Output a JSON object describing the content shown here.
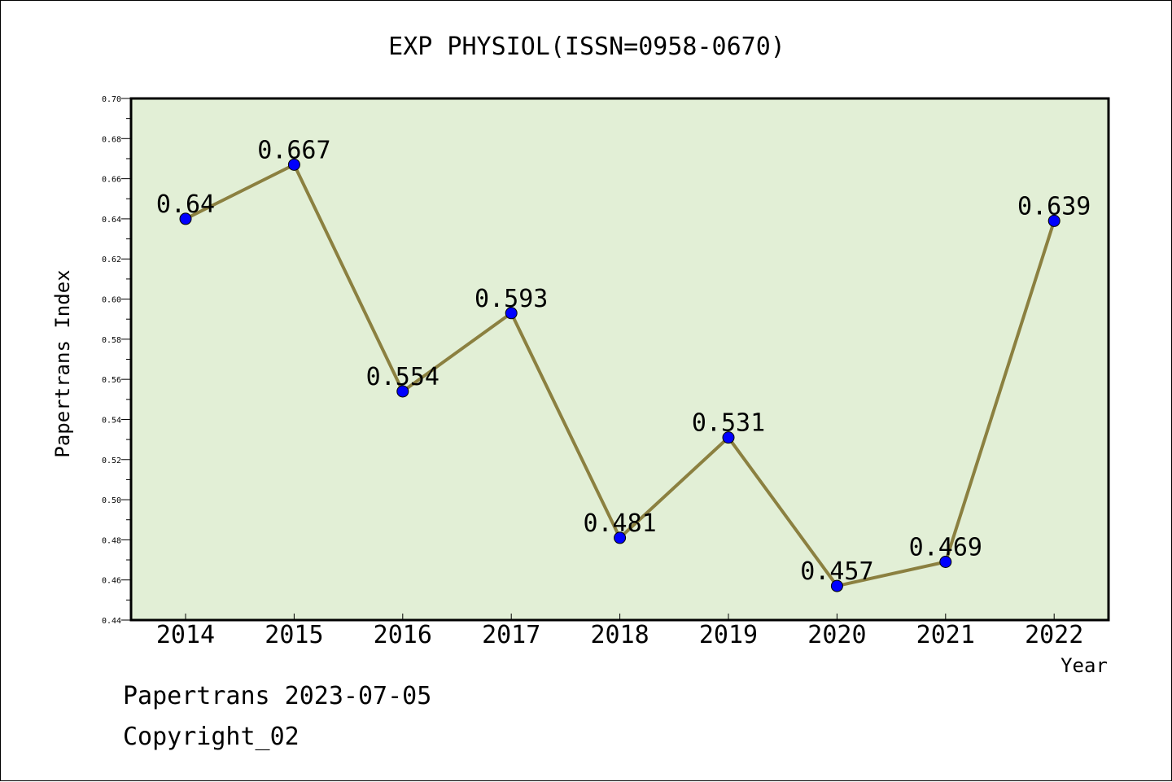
{
  "chart_data": {
    "type": "line",
    "title": "EXP PHYSIOL(ISSN=0958-0670)",
    "xlabel": "Year",
    "ylabel": "Papertrans Index",
    "categories": [
      "2014",
      "2015",
      "2016",
      "2017",
      "2018",
      "2019",
      "2020",
      "2021",
      "2022"
    ],
    "values": [
      0.64,
      0.667,
      0.554,
      0.593,
      0.481,
      0.531,
      0.457,
      0.469,
      0.639
    ],
    "data_labels": [
      "0.64",
      "0.667",
      "0.554",
      "0.593",
      "0.481",
      "0.531",
      "0.457",
      "0.469",
      "0.639"
    ],
    "ylim": [
      0.44,
      0.7
    ],
    "yticks": [
      "0.44",
      "0.46",
      "0.48",
      "0.50",
      "0.52",
      "0.54",
      "0.56",
      "0.58",
      "0.60",
      "0.62",
      "0.64",
      "0.66",
      "0.68",
      "0.70"
    ],
    "grid": false,
    "legend": "none",
    "colors": {
      "line": "#8b8040",
      "marker": "#0000ff",
      "plot_background": "#e2efd6",
      "axes": "#000000"
    }
  },
  "footer": {
    "line1": "Papertrans 2023-07-05",
    "line2": "Copyright_02"
  }
}
